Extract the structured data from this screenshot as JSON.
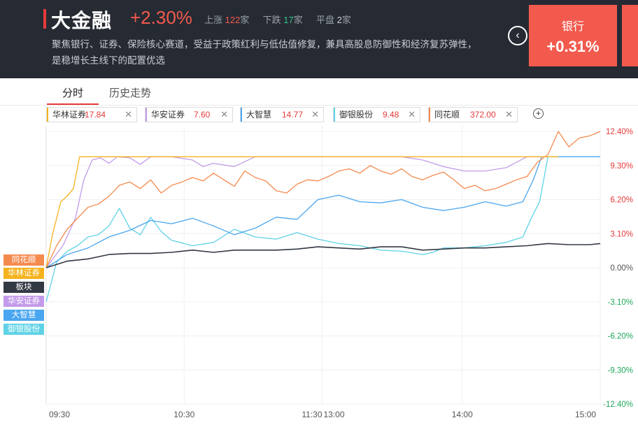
{
  "header": {
    "title": "大金融",
    "change": "+2.30%",
    "up_label": "上涨",
    "up_count": "122",
    "down_label": "下跌",
    "down_count": "17",
    "flat_label": "平盘",
    "flat_count": "2",
    "unit": "家",
    "description": "聚焦银行、证券、保险核心赛道，受益于政策红利与低估值修复，兼具高股息防御性和经济复苏弹性，是稳增长主线下的配置优选"
  },
  "sector_card": {
    "name": "银行",
    "change": "+0.31%"
  },
  "tabs": [
    {
      "label": "分时",
      "active": true
    },
    {
      "label": "历史走势",
      "active": false
    }
  ],
  "chips": [
    {
      "name": "华林证券",
      "value": "17.84",
      "color": "#f5b21c"
    },
    {
      "name": "华安证券",
      "value": "7.60",
      "color": "#c49bea"
    },
    {
      "name": "大智慧",
      "value": "14.77",
      "color": "#4aa6f0"
    },
    {
      "name": "御银股份",
      "value": "9.48",
      "color": "#5fd2e6"
    },
    {
      "name": "同花顺",
      "value": "372.00",
      "color": "#f58a4e"
    }
  ],
  "legend": [
    {
      "label": "同花顺",
      "color": "#f58a4e"
    },
    {
      "label": "华林证券",
      "color": "#f5b21c"
    },
    {
      "label": "板块",
      "color": "#333943"
    },
    {
      "label": "华安证券",
      "color": "#c49bea"
    },
    {
      "label": "大智慧",
      "color": "#4aa6f0"
    },
    {
      "label": "御银股份",
      "color": "#5fd2e6"
    }
  ],
  "chart_data": {
    "type": "line",
    "y_ticks": [
      "12.40%",
      "9.30%",
      "6.20%",
      "3.10%",
      "0.00%",
      "-3.10%",
      "-6.20%",
      "-9.30%",
      "-12.40%"
    ],
    "y_values": [
      12.4,
      9.3,
      6.2,
      3.1,
      0,
      -3.1,
      -6.2,
      -9.3,
      -12.4
    ],
    "x_ticks": [
      "09:30",
      "10:30",
      "11:30",
      "13:00",
      "14:00",
      "15:00"
    ],
    "ylim": [
      -12.4,
      12.4
    ],
    "series": [
      {
        "name": "同花顺",
        "color": "#f58a4e",
        "points": [
          [
            0,
            0.0
          ],
          [
            5,
            2.0
          ],
          [
            10,
            3.5
          ],
          [
            15,
            4.5
          ],
          [
            20,
            5.5
          ],
          [
            25,
            5.8
          ],
          [
            30,
            6.5
          ],
          [
            35,
            7.5
          ],
          [
            40,
            7.8
          ],
          [
            45,
            7.2
          ],
          [
            50,
            8.0
          ],
          [
            55,
            6.8
          ],
          [
            60,
            7.5
          ],
          [
            65,
            7.8
          ],
          [
            70,
            8.2
          ],
          [
            75,
            7.9
          ],
          [
            80,
            8.6
          ],
          [
            85,
            8.0
          ],
          [
            90,
            7.4
          ],
          [
            95,
            8.8
          ],
          [
            100,
            8.2
          ],
          [
            105,
            7.9
          ],
          [
            110,
            7.0
          ],
          [
            115,
            6.8
          ],
          [
            120,
            7.6
          ],
          [
            125,
            8.0
          ],
          [
            130,
            7.9
          ],
          [
            135,
            8.3
          ],
          [
            140,
            8.8
          ],
          [
            145,
            9.0
          ],
          [
            150,
            8.6
          ],
          [
            155,
            9.3
          ],
          [
            160,
            8.8
          ],
          [
            165,
            8.5
          ],
          [
            170,
            9.0
          ],
          [
            175,
            8.3
          ],
          [
            180,
            8.0
          ],
          [
            185,
            8.4
          ],
          [
            190,
            8.7
          ],
          [
            195,
            8.0
          ],
          [
            200,
            7.2
          ],
          [
            205,
            7.5
          ],
          [
            210,
            7.0
          ],
          [
            215,
            7.2
          ],
          [
            220,
            7.6
          ],
          [
            225,
            8.0
          ],
          [
            230,
            8.3
          ],
          [
            235,
            9.6
          ],
          [
            240,
            10.3
          ],
          [
            245,
            12.4
          ],
          [
            250,
            11.0
          ],
          [
            255,
            11.8
          ],
          [
            260,
            12.0
          ],
          [
            265,
            12.4
          ]
        ]
      },
      {
        "name": "华林证券",
        "color": "#f5b21c",
        "points": [
          [
            0,
            0.0
          ],
          [
            3,
            3.0
          ],
          [
            7,
            6.0
          ],
          [
            10,
            6.5
          ],
          [
            13,
            7.2
          ],
          [
            16,
            10.1
          ],
          [
            30,
            10.1
          ],
          [
            60,
            10.1
          ],
          [
            90,
            10.1
          ],
          [
            120,
            10.1
          ],
          [
            150,
            10.1
          ],
          [
            180,
            10.1
          ],
          [
            210,
            10.1
          ],
          [
            240,
            10.1
          ],
          [
            245,
            10.1
          ]
        ]
      },
      {
        "name": "板块",
        "color": "#333943",
        "points": [
          [
            0,
            0.0
          ],
          [
            10,
            0.6
          ],
          [
            20,
            0.8
          ],
          [
            30,
            1.2
          ],
          [
            40,
            1.3
          ],
          [
            50,
            1.3
          ],
          [
            60,
            1.4
          ],
          [
            70,
            1.6
          ],
          [
            80,
            1.4
          ],
          [
            90,
            1.6
          ],
          [
            100,
            1.6
          ],
          [
            110,
            1.6
          ],
          [
            120,
            1.7
          ],
          [
            130,
            1.9
          ],
          [
            140,
            1.8
          ],
          [
            150,
            1.7
          ],
          [
            160,
            1.9
          ],
          [
            170,
            1.9
          ],
          [
            180,
            1.6
          ],
          [
            190,
            1.7
          ],
          [
            200,
            1.8
          ],
          [
            210,
            1.8
          ],
          [
            220,
            1.9
          ],
          [
            230,
            2.0
          ],
          [
            240,
            2.2
          ],
          [
            250,
            2.1
          ],
          [
            260,
            2.1
          ],
          [
            265,
            2.2
          ]
        ]
      },
      {
        "name": "华安证券",
        "color": "#c49bea",
        "points": [
          [
            0,
            0.0
          ],
          [
            8,
            2.0
          ],
          [
            14,
            4.5
          ],
          [
            18,
            8.0
          ],
          [
            22,
            9.8
          ],
          [
            26,
            10.0
          ],
          [
            30,
            9.5
          ],
          [
            34,
            10.1
          ],
          [
            40,
            10.0
          ],
          [
            45,
            9.4
          ],
          [
            50,
            10.1
          ],
          [
            60,
            10.1
          ],
          [
            70,
            9.8
          ],
          [
            75,
            9.2
          ],
          [
            80,
            9.5
          ],
          [
            90,
            9.2
          ],
          [
            100,
            10.1
          ],
          [
            110,
            10.1
          ],
          [
            120,
            10.1
          ],
          [
            130,
            10.1
          ],
          [
            140,
            10.1
          ],
          [
            150,
            10.1
          ],
          [
            160,
            10.1
          ],
          [
            170,
            10.1
          ],
          [
            180,
            9.8
          ],
          [
            190,
            9.2
          ],
          [
            200,
            8.8
          ],
          [
            210,
            8.8
          ],
          [
            220,
            9.1
          ],
          [
            230,
            10.1
          ],
          [
            240,
            10.1
          ]
        ]
      },
      {
        "name": "大智慧",
        "color": "#4aa6f0",
        "points": [
          [
            0,
            0.0
          ],
          [
            10,
            1.2
          ],
          [
            20,
            1.8
          ],
          [
            30,
            2.8
          ],
          [
            40,
            3.4
          ],
          [
            50,
            4.3
          ],
          [
            60,
            4.0
          ],
          [
            70,
            4.5
          ],
          [
            80,
            3.8
          ],
          [
            90,
            3.0
          ],
          [
            100,
            3.6
          ],
          [
            110,
            4.6
          ],
          [
            120,
            4.4
          ],
          [
            130,
            6.2
          ],
          [
            140,
            6.6
          ],
          [
            150,
            6.0
          ],
          [
            160,
            5.9
          ],
          [
            170,
            6.2
          ],
          [
            180,
            5.5
          ],
          [
            190,
            5.2
          ],
          [
            200,
            5.5
          ],
          [
            210,
            6.0
          ],
          [
            220,
            5.6
          ],
          [
            228,
            6.0
          ],
          [
            233,
            8.0
          ],
          [
            237,
            10.1
          ],
          [
            265,
            10.1
          ]
        ]
      },
      {
        "name": "御银股份",
        "color": "#5fd2e6",
        "points": [
          [
            0,
            -3.1
          ],
          [
            5,
            0.5
          ],
          [
            10,
            1.5
          ],
          [
            15,
            2.0
          ],
          [
            20,
            2.8
          ],
          [
            25,
            3.0
          ],
          [
            30,
            3.8
          ],
          [
            35,
            5.4
          ],
          [
            40,
            3.6
          ],
          [
            45,
            3.0
          ],
          [
            50,
            4.6
          ],
          [
            55,
            3.3
          ],
          [
            60,
            2.5
          ],
          [
            70,
            2.0
          ],
          [
            80,
            2.3
          ],
          [
            90,
            3.5
          ],
          [
            100,
            2.8
          ],
          [
            110,
            2.6
          ],
          [
            120,
            3.2
          ],
          [
            130,
            2.6
          ],
          [
            140,
            2.2
          ],
          [
            150,
            2.0
          ],
          [
            160,
            1.6
          ],
          [
            170,
            1.5
          ],
          [
            180,
            1.2
          ],
          [
            185,
            1.4
          ],
          [
            190,
            1.8
          ],
          [
            200,
            1.8
          ],
          [
            210,
            2.0
          ],
          [
            220,
            2.3
          ],
          [
            228,
            2.8
          ],
          [
            232,
            4.5
          ],
          [
            236,
            6.0
          ],
          [
            240,
            10.1
          ]
        ]
      }
    ]
  }
}
